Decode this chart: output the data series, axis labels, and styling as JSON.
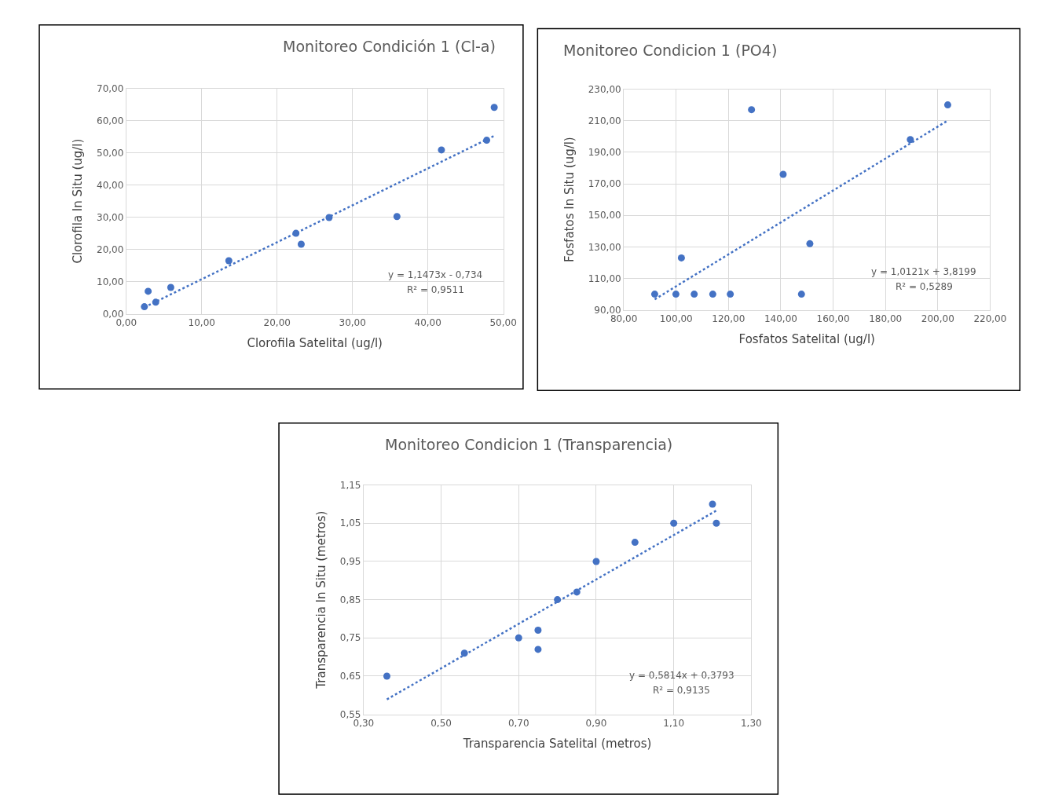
{
  "chart_data": [
    {
      "type": "scatter",
      "title": "Monitoreo Condición 1 (Cl-a)",
      "xlabel": "Clorofila Satelital (ug/l)",
      "ylabel": "Clorofila In Situ (ug/l)",
      "x": [
        2.4,
        2.9,
        3.9,
        5.9,
        13.6,
        22.5,
        23.2,
        26.9,
        35.9,
        41.8,
        47.8,
        48.8
      ],
      "series": [
        {
          "color": "#4472c4",
          "marker": "circle",
          "values": [
            2.2,
            7.0,
            3.6,
            8.2,
            16.5,
            25.0,
            21.6,
            29.9,
            30.2,
            50.9,
            53.9,
            64.1
          ]
        },
        {
          "type": "line",
          "color": "#4472c4",
          "line_style": "dotted",
          "marker": "none",
          "x": [
            2.4,
            48.8
          ],
          "values": [
            2.02,
            55.26
          ]
        }
      ],
      "xlim": [
        0,
        50
      ],
      "ylim": [
        0,
        70
      ],
      "xticks": [
        {
          "value": 0,
          "label": "0,00"
        },
        {
          "value": 10,
          "label": "10,00"
        },
        {
          "value": 20,
          "label": "20,00"
        },
        {
          "value": 30,
          "label": "30,00"
        },
        {
          "value": 40,
          "label": "40,00"
        },
        {
          "value": 50,
          "label": "50,00"
        }
      ],
      "yticks": [
        {
          "value": 0,
          "label": "0,00"
        },
        {
          "value": 10,
          "label": "10,00"
        },
        {
          "value": 20,
          "label": "20,00"
        },
        {
          "value": 30,
          "label": "30,00"
        },
        {
          "value": 40,
          "label": "40,00"
        },
        {
          "value": 50,
          "label": "50,00"
        },
        {
          "value": 60,
          "label": "60,00"
        },
        {
          "value": 70,
          "label": "70,00"
        }
      ],
      "grid": true,
      "annotations": [
        "y = 1,1473x - 0,734",
        "R² = 0,9511"
      ]
    },
    {
      "type": "scatter",
      "title": "Monitoreo Condicion 1 (PO4)",
      "xlabel": "Fosfatos Satelital (ug/l)",
      "ylabel": "Fosfatos In Situ (ug/l)",
      "x": [
        91.8,
        99.9,
        102.0,
        106.9,
        114.0,
        120.7,
        128.8,
        140.9,
        147.9,
        151.1,
        189.5,
        203.8
      ],
      "series": [
        {
          "color": "#4472c4",
          "marker": "circle",
          "values": [
            100,
            100,
            123,
            100,
            100,
            100,
            217,
            176,
            100,
            132,
            198,
            220
          ]
        },
        {
          "type": "line",
          "color": "#4472c4",
          "line_style": "dotted",
          "marker": "none",
          "x": [
            91.8,
            203.8
          ],
          "values": [
            96.7,
            210.1
          ]
        }
      ],
      "xlim": [
        80,
        220
      ],
      "ylim": [
        90,
        230
      ],
      "xticks": [
        {
          "value": 80,
          "label": "80,00"
        },
        {
          "value": 100,
          "label": "100,00"
        },
        {
          "value": 120,
          "label": "120,00"
        },
        {
          "value": 140,
          "label": "140,00"
        },
        {
          "value": 160,
          "label": "160,00"
        },
        {
          "value": 180,
          "label": "180,00"
        },
        {
          "value": 200,
          "label": "200,00"
        },
        {
          "value": 220,
          "label": "220,00"
        }
      ],
      "yticks": [
        {
          "value": 90,
          "label": "90,00"
        },
        {
          "value": 110,
          "label": "110,00"
        },
        {
          "value": 130,
          "label": "130,00"
        },
        {
          "value": 150,
          "label": "150,00"
        },
        {
          "value": 170,
          "label": "170,00"
        },
        {
          "value": 190,
          "label": "190,00"
        },
        {
          "value": 210,
          "label": "210,00"
        },
        {
          "value": 230,
          "label": "230,00"
        }
      ],
      "grid": true,
      "annotations": [
        "y = 1,0121x + 3,8199",
        "R² = 0,5289"
      ]
    },
    {
      "type": "scatter",
      "title": "Monitoreo Condicion 1 (Transparencia)",
      "xlabel": "Transparencia Satelital (metros)",
      "ylabel": "Transparencia In Situ (metros)",
      "x": [
        0.36,
        0.56,
        0.7,
        0.75,
        0.75,
        0.8,
        0.85,
        0.9,
        1.0,
        1.1,
        1.2,
        1.21
      ],
      "series": [
        {
          "color": "#4472c4",
          "marker": "circle",
          "values": [
            0.65,
            0.71,
            0.75,
            0.77,
            0.72,
            0.85,
            0.87,
            0.95,
            1.0,
            1.05,
            1.1,
            1.05
          ]
        },
        {
          "type": "line",
          "color": "#4472c4",
          "line_style": "dotted",
          "marker": "none",
          "x": [
            0.36,
            1.21
          ],
          "values": [
            0.589,
            1.083
          ]
        }
      ],
      "xlim": [
        0.3,
        1.3
      ],
      "ylim": [
        0.55,
        1.15
      ],
      "xticks": [
        {
          "value": 0.3,
          "label": "0,30"
        },
        {
          "value": 0.5,
          "label": "0,50"
        },
        {
          "value": 0.7,
          "label": "0,70"
        },
        {
          "value": 0.9,
          "label": "0,90"
        },
        {
          "value": 1.1,
          "label": "1,10"
        },
        {
          "value": 1.3,
          "label": "1,30"
        }
      ],
      "yticks": [
        {
          "value": 0.55,
          "label": "0,55"
        },
        {
          "value": 0.65,
          "label": "0,65"
        },
        {
          "value": 0.75,
          "label": "0,75"
        },
        {
          "value": 0.85,
          "label": "0,85"
        },
        {
          "value": 0.95,
          "label": "0,95"
        },
        {
          "value": 1.05,
          "label": "1,05"
        },
        {
          "value": 1.15,
          "label": "1,15"
        }
      ],
      "grid": true,
      "annotations": [
        "y = 0,5814x + 0,3793",
        "R² = 0,9135"
      ]
    }
  ]
}
